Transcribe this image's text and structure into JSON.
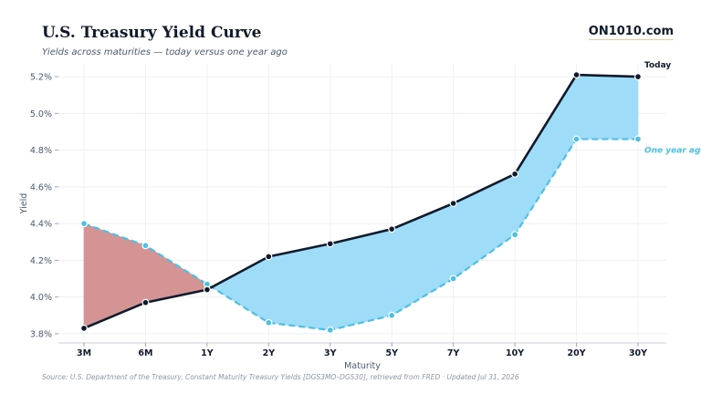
{
  "header": {
    "title": "U.S. Treasury Yield Curve",
    "subtitle": "Yields across maturities — today versus one year ago",
    "brand": "ON1010.com"
  },
  "footer": {
    "source": "Source: U.S. Department of the Treasury, Constant Maturity Treasury Yields [DGS3MO–DGS30], retrieved from FRED · Updated Jul 31, 2026"
  },
  "chart_data": {
    "type": "line",
    "xlabel": "Maturity",
    "ylabel": "Yield",
    "categories": [
      "3M",
      "6M",
      "1Y",
      "2Y",
      "3Y",
      "5Y",
      "7Y",
      "10Y",
      "20Y",
      "30Y"
    ],
    "yticks": [
      3.8,
      4.0,
      4.2,
      4.4,
      4.6,
      4.8,
      5.0,
      5.2
    ],
    "ytick_labels": [
      "3.8%",
      "4.0%",
      "4.2%",
      "4.4%",
      "4.6%",
      "4.8%",
      "5.0%",
      "5.2%"
    ],
    "ylim": [
      3.75,
      5.27
    ],
    "grid": true,
    "series": [
      {
        "name": "Today",
        "values": [
          3.83,
          3.97,
          4.04,
          4.22,
          4.29,
          4.37,
          4.51,
          4.67,
          5.21,
          5.2
        ],
        "color": "#0f1b2d",
        "style": "solid"
      },
      {
        "name": "One year ago",
        "values": [
          4.4,
          4.28,
          4.07,
          3.86,
          3.82,
          3.9,
          4.1,
          4.34,
          4.86,
          4.86
        ],
        "color": "#4cc0e4",
        "style": "dashed"
      }
    ],
    "fill_today_above_color": "#9fdcf7",
    "fill_today_below_color": "#d49494"
  }
}
